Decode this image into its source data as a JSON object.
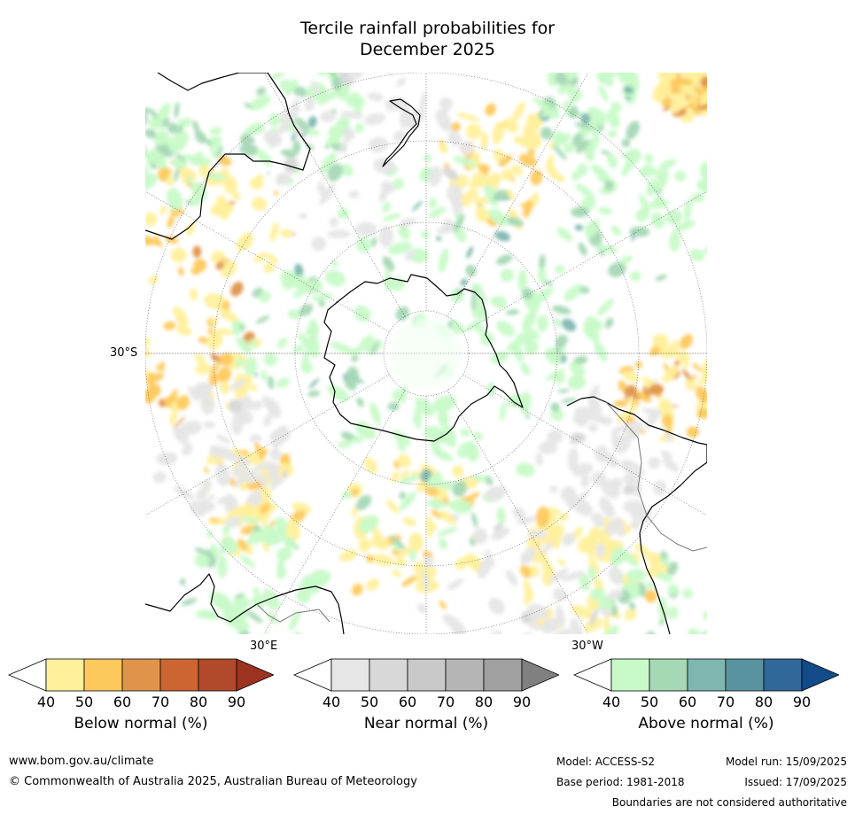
{
  "title": {
    "line1": "Tercile rainfall probabilities for",
    "line2": "December 2025"
  },
  "map": {
    "lat_label": "30°S",
    "lon_labels": {
      "east": "30°E",
      "west": "30°W"
    },
    "colors": {
      "below": [
        "#fff09c",
        "#fdc95c",
        "#e0944a",
        "#cd6532",
        "#b04a2a",
        "#9b3320"
      ],
      "near": [
        "#e6e6e6",
        "#d8d8d8",
        "#c9c9c9",
        "#b5b5b5",
        "#a0a0a0",
        "#808080"
      ],
      "above": [
        "#c8fac8",
        "#a5d8b5",
        "#7eb7b0",
        "#5a93a0",
        "#31679a",
        "#124b88"
      ]
    }
  },
  "colorbars": [
    {
      "key": "below",
      "label": "Below normal (%)",
      "ticks": [
        "40",
        "50",
        "60",
        "70",
        "80",
        "90"
      ]
    },
    {
      "key": "near",
      "label": "Near normal (%)",
      "ticks": [
        "40",
        "50",
        "60",
        "70",
        "80",
        "90"
      ]
    },
    {
      "key": "above",
      "label": "Above normal (%)",
      "ticks": [
        "40",
        "50",
        "60",
        "70",
        "80",
        "90"
      ]
    }
  ],
  "footer": {
    "website": "www.bom.gov.au/climate",
    "copyright": "© Commonwealth of Australia 2025, Australian Bureau of Meteorology",
    "model": "Model: ACCESS-S2",
    "base_period": "Base period: 1981-2018",
    "model_run": "Model run: 15/09/2025",
    "issued": "Issued: 17/09/2025",
    "disclaimer": "Boundaries are not considered authoritative"
  }
}
